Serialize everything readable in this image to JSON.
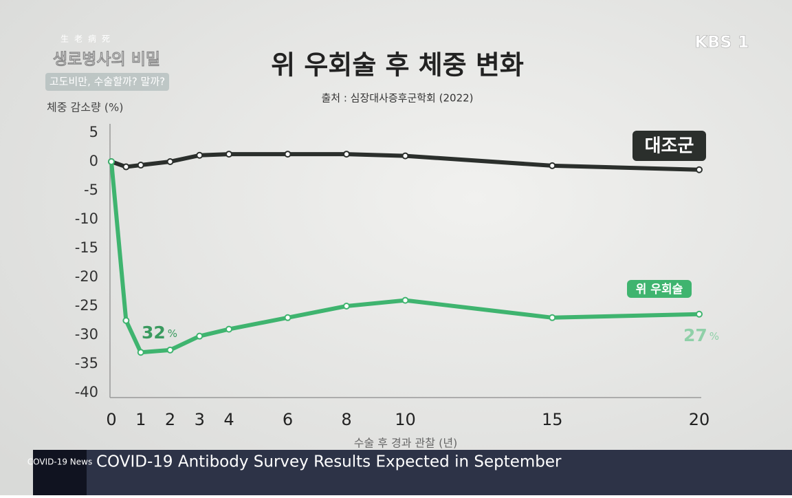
{
  "chart_data": {
    "type": "line",
    "title": "위 우회술 후 체중 변화",
    "subtitle": "출처 : 심장대사증후군학회 (2022)",
    "y_label": "체중 감소량 (%)",
    "x_label": "수술 후 경과 관찰 (년)",
    "x": [
      0,
      0.5,
      1,
      2,
      3,
      4,
      6,
      8,
      10,
      15,
      20
    ],
    "series": [
      {
        "name": "대조군",
        "color": "#2b2f2c",
        "values": [
          0,
          -0.9,
          -0.6,
          0,
          1.1,
          1.3,
          1.3,
          1.3,
          1.0,
          -0.7,
          -1.4
        ]
      },
      {
        "name": "위 우회술",
        "color": "#3fb46f",
        "values": [
          0,
          -27.5,
          -33,
          -32.6,
          -30.2,
          -29,
          -27,
          -25,
          -24,
          -27,
          -26.4
        ]
      }
    ],
    "annotations": [
      {
        "text": "32",
        "unit": "%"
      },
      {
        "text": "27",
        "unit": "%"
      }
    ],
    "xlim": [
      0,
      20
    ],
    "xticks": [
      0,
      1,
      2,
      3,
      4,
      6,
      8,
      10,
      15,
      20
    ],
    "ylim": [
      -40,
      5
    ],
    "yticks": [
      5,
      0,
      -5,
      -10,
      -15,
      -20,
      -25,
      -30,
      -35,
      -40
    ],
    "grid": false
  },
  "program": {
    "hanja": "生老病死",
    "name": "생로병사의 비밀",
    "episode": "고도비만, 수술할까? 말까?"
  },
  "logo": "KBS 1",
  "ticker": {
    "tag": "COVID-19 News",
    "headline": "COVID-19 Antibody Survey Results Expected in September"
  }
}
